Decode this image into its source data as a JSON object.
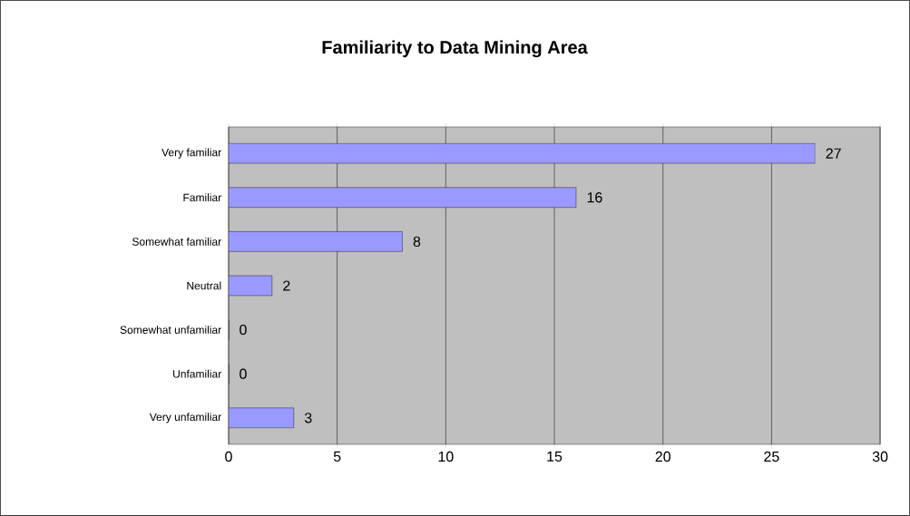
{
  "chart_data": {
    "type": "bar",
    "orientation": "horizontal",
    "title": "Familiarity to Data Mining Area",
    "categories": [
      "Very familiar",
      "Familiar",
      "Somewhat familiar",
      "Neutral",
      "Somewhat unfamiliar",
      "Unfamiliar",
      "Very unfamiliar"
    ],
    "values": [
      27,
      16,
      8,
      2,
      0,
      0,
      3
    ],
    "color": "#9999ff",
    "data_labels": true,
    "xlim": [
      0,
      30
    ],
    "xticks": [
      0,
      5,
      10,
      15,
      20,
      25,
      30
    ],
    "grid": "x"
  }
}
